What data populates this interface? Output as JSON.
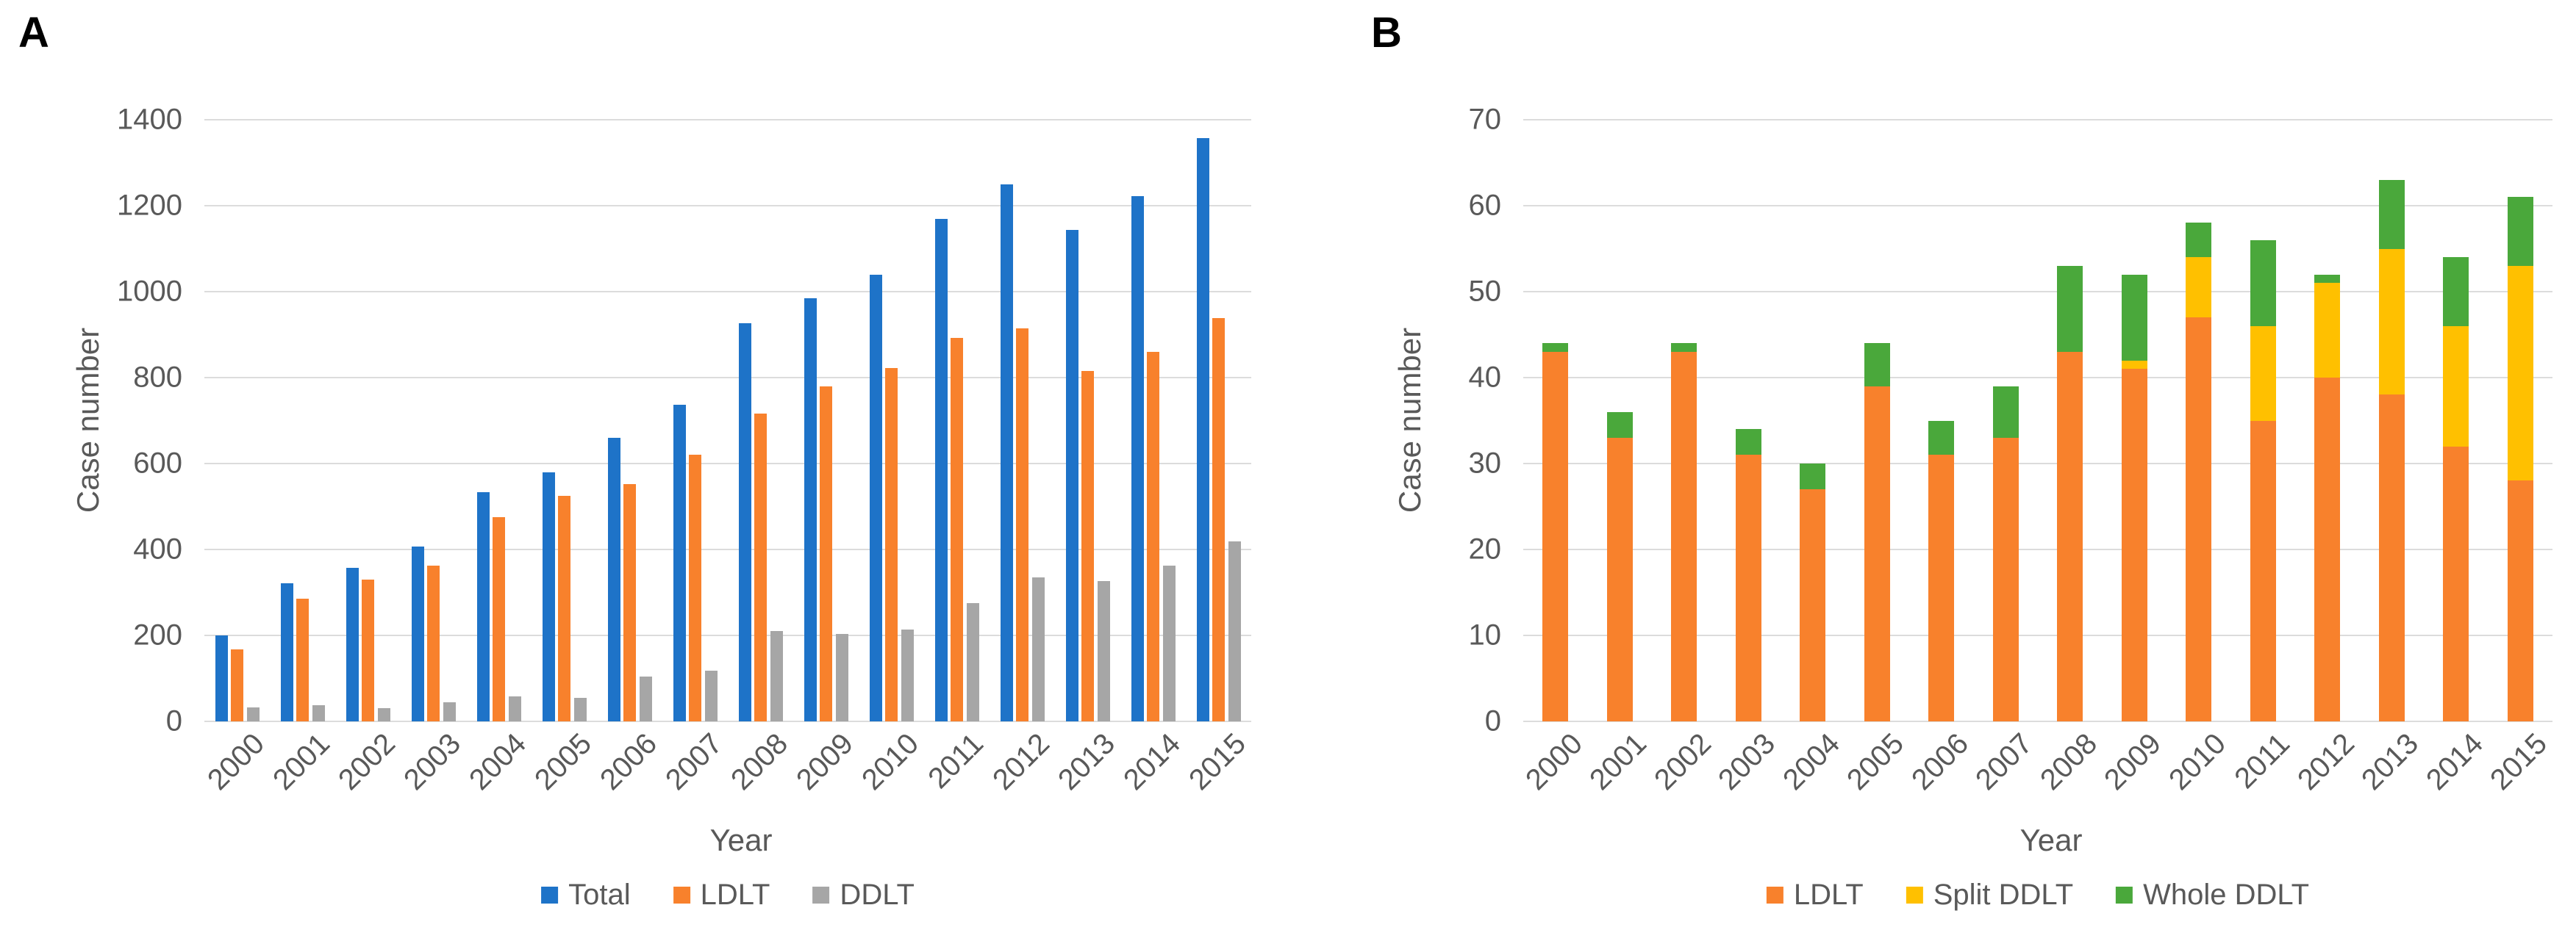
{
  "figure": {
    "panels": [
      {
        "label": "A"
      },
      {
        "label": "B"
      }
    ]
  },
  "chart_data": [
    {
      "panel_label": "A",
      "type": "bar",
      "subtype": "grouped",
      "title": "",
      "xlabel": "Year",
      "ylabel": "Case number",
      "ylim": [
        0,
        1400
      ],
      "ytick_step": 200,
      "grid": true,
      "legend_position": "bottom",
      "categories": [
        "2000",
        "2001",
        "2002",
        "2003",
        "2004",
        "2005",
        "2006",
        "2007",
        "2008",
        "2009",
        "2010",
        "2011",
        "2012",
        "2013",
        "2014",
        "2015"
      ],
      "series": [
        {
          "name": "Total",
          "color": "#1E73C8",
          "values": [
            200,
            322,
            358,
            407,
            533,
            579,
            660,
            737,
            926,
            985,
            1040,
            1170,
            1250,
            1143,
            1223,
            1358
          ]
        },
        {
          "name": "LDLT",
          "color": "#F8812C",
          "values": [
            168,
            285,
            330,
            362,
            476,
            524,
            553,
            620,
            716,
            780,
            823,
            893,
            915,
            815,
            860,
            938
          ]
        },
        {
          "name": "DDLT",
          "color": "#A6A6A6",
          "values": [
            32,
            38,
            30,
            45,
            58,
            55,
            105,
            118,
            210,
            203,
            214,
            276,
            335,
            326,
            362,
            419
          ]
        }
      ]
    },
    {
      "panel_label": "B",
      "type": "bar",
      "subtype": "stacked",
      "title": "",
      "xlabel": "Year",
      "ylabel": "Case number",
      "ylim": [
        0,
        70
      ],
      "ytick_step": 10,
      "grid": true,
      "legend_position": "bottom",
      "categories": [
        "2000",
        "2001",
        "2002",
        "2003",
        "2004",
        "2005",
        "2006",
        "2007",
        "2008",
        "2009",
        "2010",
        "2011",
        "2012",
        "2013",
        "2014",
        "2015"
      ],
      "series": [
        {
          "name": "LDLT",
          "color": "#F8812C",
          "values": [
            43,
            33,
            43,
            31,
            27,
            39,
            31,
            33,
            43,
            41,
            47,
            35,
            40,
            38,
            32,
            28
          ]
        },
        {
          "name": "Split DDLT",
          "color": "#FFC000",
          "values": [
            0,
            0,
            0,
            0,
            0,
            0,
            0,
            0,
            0,
            1,
            7,
            11,
            11,
            17,
            14,
            25
          ]
        },
        {
          "name": "Whole DDLT",
          "color": "#4AA83B",
          "values": [
            1,
            3,
            1,
            3,
            3,
            5,
            4,
            6,
            10,
            10,
            4,
            10,
            1,
            8,
            8,
            8
          ]
        }
      ]
    }
  ]
}
